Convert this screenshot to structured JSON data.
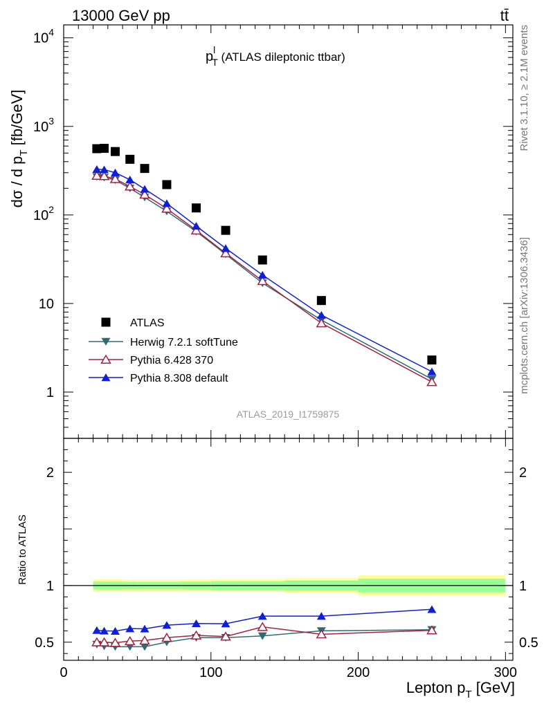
{
  "header": {
    "energy_label": "13000 GeV pp",
    "process_label": "tt̄"
  },
  "side_labels": {
    "rivet": "Rivet 3.1.10, ≥ 2.1M events",
    "mcplots": "mcplots.cern.ch [arXiv:1306.3436]"
  },
  "chart_data": {
    "type": "scatter",
    "title_main": "p",
    "title_sup": "l",
    "title_sub": "T",
    "title_rest": " (ATLAS dileptonic ttbar)",
    "analysis_id": "ATLAS_2019_I1759875",
    "xlabel_main": "Lepton p",
    "xlabel_sub": "T",
    "xlabel_rest": " [GeV]",
    "ylabel_main": "dσ / d p",
    "ylabel_sub": "T",
    "ylabel_rest": " [fb/GeV]",
    "ratio_ylabel": "Ratio to ATLAS",
    "xlim": [
      0,
      305
    ],
    "ylim": [
      0.3,
      14000
    ],
    "yscale": "log",
    "ratio_ylim": [
      0.34,
      2.3
    ],
    "x_ticks": [
      "0",
      "100",
      "200",
      "300"
    ],
    "y_ticks": [
      "1",
      "10",
      "10^2",
      "10^3",
      "10^4"
    ],
    "ratio_ticks": [
      "0.5",
      "1",
      "2"
    ],
    "x": [
      22.5,
      27.5,
      35,
      45,
      55,
      70,
      90,
      110,
      135,
      175,
      250
    ],
    "band_edges": [
      20,
      30,
      40,
      50,
      60,
      80,
      100,
      120,
      150,
      200,
      300
    ],
    "band_inner": [
      0.035,
      0.035,
      0.033,
      0.033,
      0.033,
      0.035,
      0.038,
      0.038,
      0.045,
      0.06,
      0.13
    ],
    "band_outer": [
      0.055,
      0.055,
      0.05,
      0.05,
      0.05,
      0.052,
      0.055,
      0.055,
      0.065,
      0.09,
      0.23
    ],
    "series": [
      {
        "name": "ATLAS",
        "marker": "square",
        "color": "#000000",
        "values": [
          560,
          565,
          520,
          425,
          335,
          220,
          120,
          67,
          31,
          10.8,
          2.3
        ]
      },
      {
        "name": "Herwig 7.2.1 softTune",
        "marker": "triangle-down",
        "color": "#2e6b73",
        "values": [
          270,
          265,
          248,
          200,
          158,
          110,
          65,
          36,
          17,
          6.5,
          1.4
        ],
        "ratio": [
          0.48,
          0.465,
          0.46,
          0.46,
          0.46,
          0.5,
          0.54,
          0.54,
          0.555,
          0.6,
          0.61
        ]
      },
      {
        "name": "Pythia 6.428 370",
        "marker": "triangle-open",
        "color": "#a3213c",
        "values": [
          278,
          275,
          255,
          210,
          170,
          118,
          67,
          37,
          18,
          6.0,
          1.3
        ],
        "ratio": [
          0.5,
          0.5,
          0.495,
          0.51,
          0.515,
          0.54,
          0.56,
          0.55,
          0.635,
          0.57,
          0.605
        ]
      },
      {
        "name": "Pythia 8.308 default",
        "marker": "triangle-up",
        "color": "#0f1fd6",
        "values": [
          328,
          325,
          300,
          250,
          196,
          135,
          75,
          42,
          21,
          7.4,
          1.7
        ],
        "ratio": [
          0.605,
          0.6,
          0.598,
          0.62,
          0.618,
          0.65,
          0.665,
          0.663,
          0.73,
          0.73,
          0.79
        ]
      }
    ]
  }
}
